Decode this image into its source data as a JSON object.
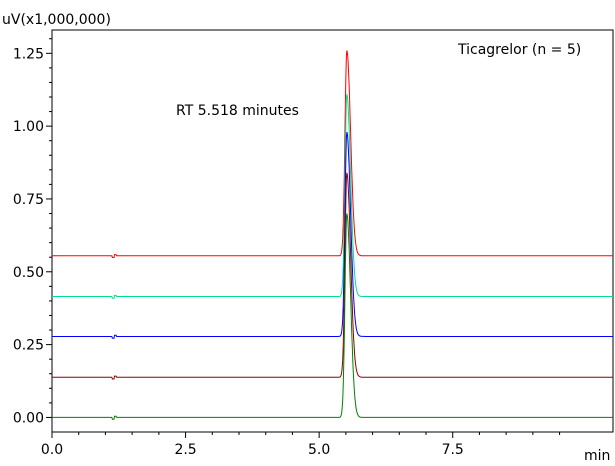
{
  "chart_data": {
    "type": "line",
    "title": "",
    "xlabel": "min",
    "ylabel": "uV(x1,000,000)",
    "xlim": [
      0,
      10.5
    ],
    "ylim": [
      -0.05,
      1.33
    ],
    "grid": false,
    "legend": "none",
    "x_ticks": [
      {
        "value": 0,
        "label": "0.0"
      },
      {
        "value": 2.5,
        "label": "2.5"
      },
      {
        "value": 5.0,
        "label": "5.0"
      },
      {
        "value": 7.5,
        "label": "7.5"
      }
    ],
    "y_ticks": [
      {
        "value": 0.0,
        "label": "0.00"
      },
      {
        "value": 0.25,
        "label": "0.25"
      },
      {
        "value": 0.5,
        "label": "0.50"
      },
      {
        "value": 0.75,
        "label": "0.75"
      },
      {
        "value": 1.0,
        "label": "1.00"
      },
      {
        "value": 1.25,
        "label": "1.25"
      }
    ],
    "annotations": {
      "sample": "Ticagrelor (n = 5)",
      "retention": "RT 5.518 minutes"
    },
    "peak_x": 5.518,
    "series": [
      {
        "color": "#ff0000",
        "baseline": 0.555,
        "peak": 1.26
      },
      {
        "color": "#00e08a",
        "baseline": 0.415,
        "peak": 1.11
      },
      {
        "color": "#0000ff",
        "baseline": 0.278,
        "peak": 0.98
      },
      {
        "color": "#8b0000",
        "baseline": 0.138,
        "peak": 0.84
      },
      {
        "color": "#008000",
        "baseline": 0.0,
        "peak": 0.7
      }
    ]
  }
}
